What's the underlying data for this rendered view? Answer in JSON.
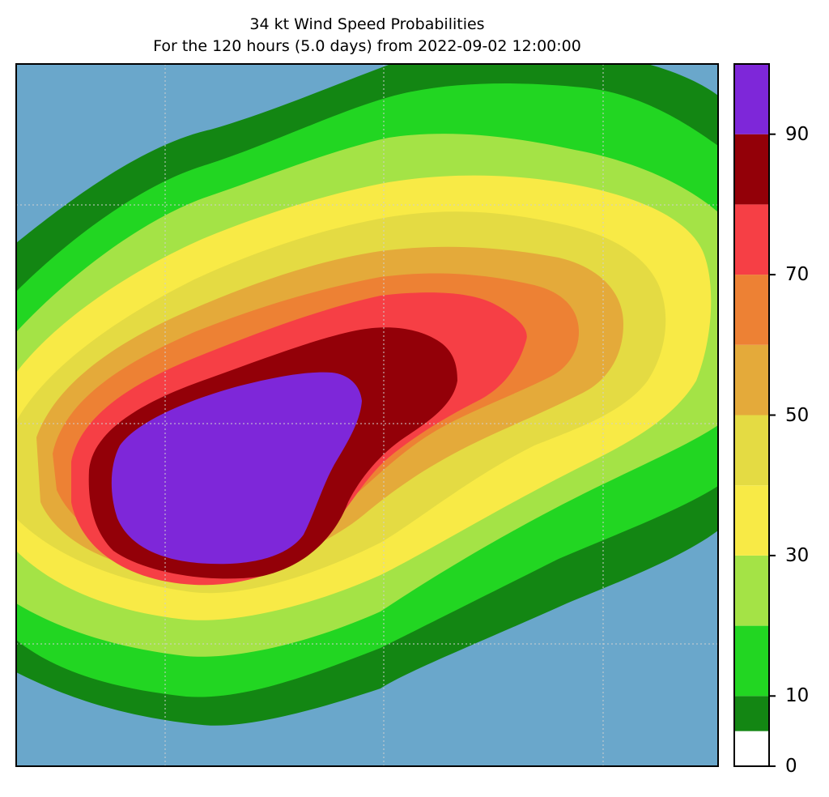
{
  "title_line1": "34 kt Wind Speed Probabilities",
  "title_line2": "For the 120 hours (5.0 days) from 2022-09-02 12:00:00",
  "background_color": "#6aa7cb",
  "colorbar": {
    "min": 0,
    "max": 100,
    "tick_values": [
      0,
      10,
      30,
      50,
      70,
      90
    ],
    "tick_labels": [
      "0",
      "10",
      "30",
      "50",
      "70",
      "90"
    ],
    "bins": [
      {
        "from": 0,
        "to": 5,
        "color": "#ffffff"
      },
      {
        "from": 5,
        "to": 10,
        "color": "#138613"
      },
      {
        "from": 10,
        "to": 20,
        "color": "#22d622"
      },
      {
        "from": 20,
        "to": 30,
        "color": "#a4e346"
      },
      {
        "from": 30,
        "to": 40,
        "color": "#f8ea46"
      },
      {
        "from": 40,
        "to": 50,
        "color": "#e4db43"
      },
      {
        "from": 50,
        "to": 60,
        "color": "#e4aa3a"
      },
      {
        "from": 60,
        "to": 70,
        "color": "#ed8134"
      },
      {
        "from": 70,
        "to": 80,
        "color": "#f63f45"
      },
      {
        "from": 80,
        "to": 90,
        "color": "#930008"
      },
      {
        "from": 90,
        "to": 100,
        "color": "#7e27d9"
      }
    ]
  }
}
